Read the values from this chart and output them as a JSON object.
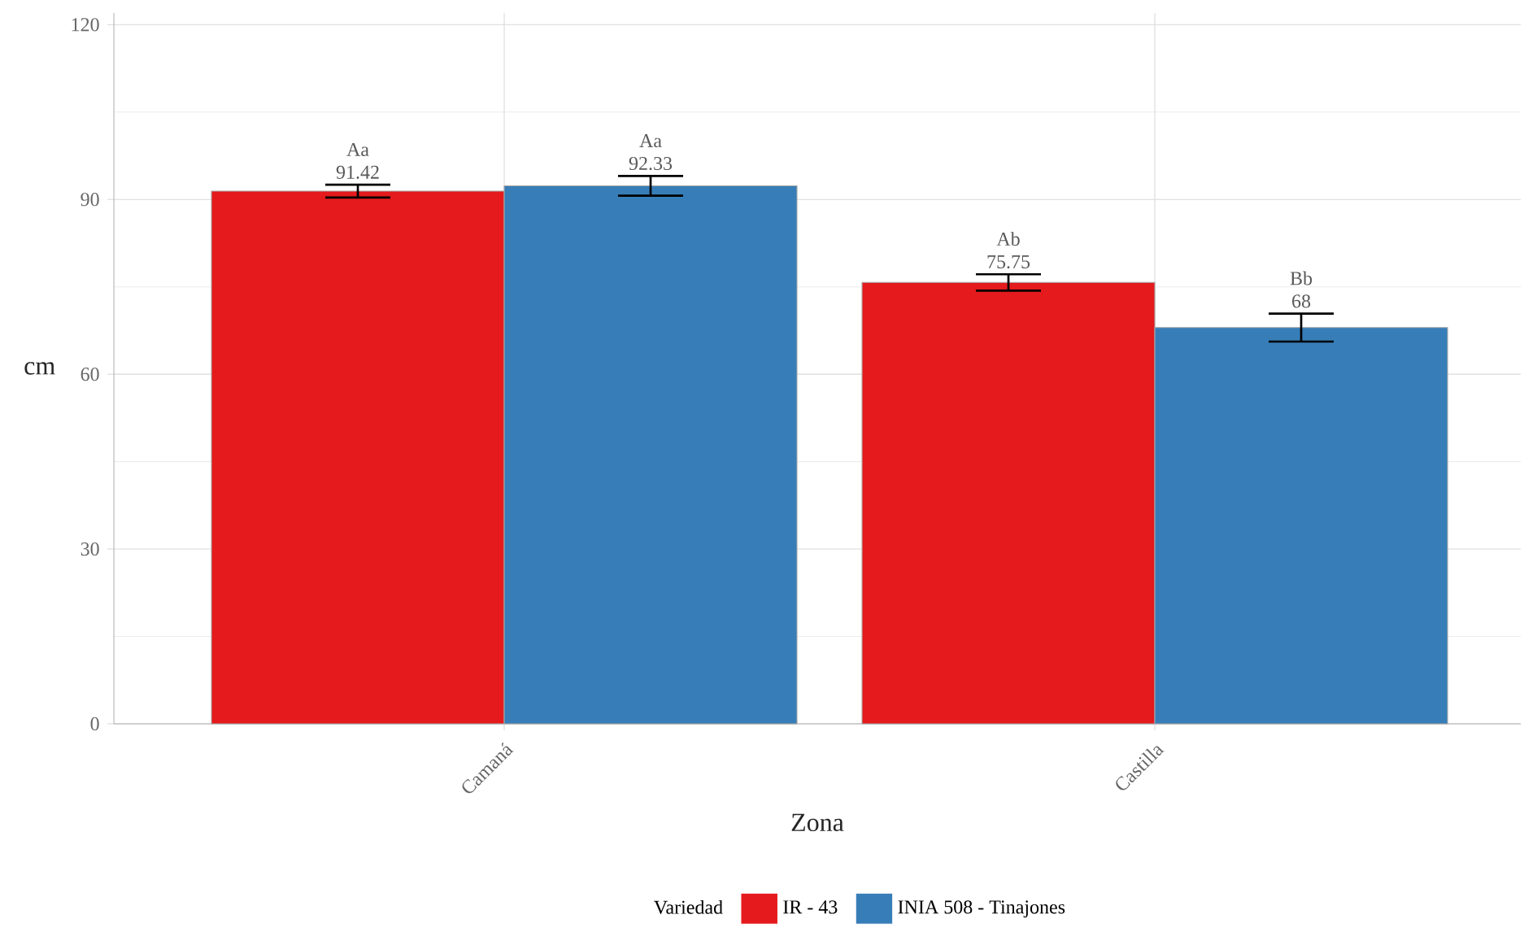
{
  "chart_data": {
    "type": "bar",
    "xlabel": "Zona",
    "ylabel": "cm",
    "legend_title": "Variedad",
    "categories": [
      "Camaná",
      "Castilla"
    ],
    "series": [
      {
        "name": "IR - 43",
        "color": "#e41a1c",
        "values": [
          91.42,
          75.75
        ],
        "errors": [
          1.1,
          1.4
        ]
      },
      {
        "name": "INIA 508 - Tinajones",
        "color": "#377eb8",
        "values": [
          92.33,
          68
        ],
        "errors": [
          1.7,
          2.4
        ]
      }
    ],
    "ylim": [
      0,
      122
    ],
    "yticks": [
      0,
      30,
      60,
      90,
      120
    ],
    "grid": true,
    "legend": "bottom",
    "data_labels": true,
    "annotations": [
      "Aa",
      "Ab",
      "Aa",
      "Bb"
    ]
  }
}
